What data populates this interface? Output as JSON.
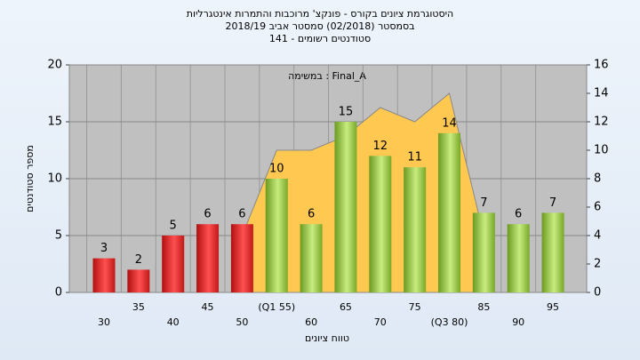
{
  "chart_data": {
    "type": "bar",
    "title": [
      "היסטוגרמת ציונים בקורס - פונקצ' מרוכבות והתמרות אינטגרליות",
      "בסמסטר  (02/2018)  סמסטר אביב 2018/19",
      "סטודנטים רשומים - 141"
    ],
    "annotation": "במשימה : Final_A",
    "xlabel": "טווח ציונים",
    "ylabel": "מספר סטודנטים",
    "categories": [
      "30",
      "35",
      "40",
      "45",
      "50",
      "(Q1 55)",
      "60",
      "65",
      "70",
      "75",
      "(Q3 80)",
      "85",
      "90",
      "95"
    ],
    "series": [
      {
        "values": [
          3,
          2,
          5,
          6,
          6,
          10,
          6,
          15,
          12,
          11,
          14,
          7,
          6,
          7
        ],
        "colors": [
          "red",
          "red",
          "red",
          "red",
          "red",
          "green",
          "green",
          "green",
          "green",
          "green",
          "green",
          "green",
          "green",
          "green"
        ]
      },
      {
        "type": "area",
        "axis": "y2",
        "color": "#ffc850",
        "values": [
          null,
          null,
          null,
          null,
          4,
          10,
          10,
          11,
          13,
          12,
          14,
          4,
          null,
          null
        ]
      }
    ],
    "ylim": [
      0,
      20
    ],
    "yticks": [
      0,
      5,
      10,
      15,
      20
    ],
    "y2lim": [
      0,
      16
    ],
    "y2ticks": [
      0,
      2,
      4,
      6,
      8,
      10,
      12,
      14,
      16
    ],
    "grid": true
  }
}
